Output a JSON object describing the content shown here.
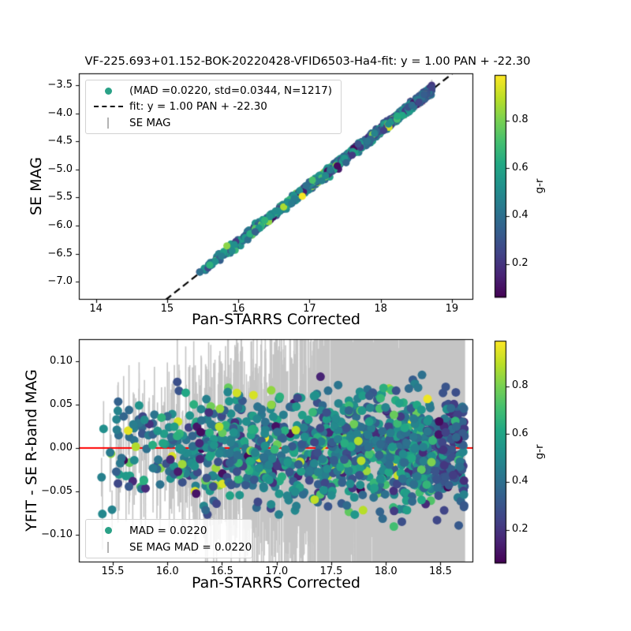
{
  "figure": {
    "title": "VF-225.693+01.152-BOK-20220428-VFID6503-Ha4-fit: y = 1.00 PAN + -22.30"
  },
  "chart_data": [
    {
      "type": "scatter",
      "panel": "top",
      "xlabel": "Pan-STARRS Corrected",
      "ylabel": "SE MAG",
      "xlim": [
        13.76,
        19.3
      ],
      "ylim": [
        -7.32,
        -3.29
      ],
      "xticks": [
        14,
        15,
        16,
        17,
        18,
        19
      ],
      "xtick_labels": [
        "14",
        "15",
        "16",
        "17",
        "18",
        "19"
      ],
      "yticks": [
        -3.5,
        -4.0,
        -4.5,
        -5.0,
        -5.5,
        -6.0,
        -6.5,
        -7.0
      ],
      "ytick_labels": [
        "−3.5",
        "−4.0",
        "−4.5",
        "−5.0",
        "−5.5",
        "−6.0",
        "−6.5",
        "−7.0"
      ],
      "grid": false,
      "legend": {
        "position": "upper left",
        "entries": [
          {
            "marker": "dot",
            "color": "#2aa187",
            "label": "(MAD =0.0220, std=0.0344, N=1217)"
          },
          {
            "marker": "dashed-line",
            "color": "#000000",
            "label": "fit: y = 1.00 PAN + -22.30"
          },
          {
            "marker": "errorbar",
            "color": "#b3b3b3",
            "label": "SE MAG"
          }
        ]
      },
      "fit": {
        "slope": 1.0,
        "intercept": -22.3,
        "color": "#000000",
        "style": "dashed"
      },
      "stats": {
        "MAD": 0.022,
        "std": 0.0344,
        "N": 1217
      },
      "series": {
        "n": 1217,
        "x_min": 15.35,
        "x_max": 18.72,
        "relation": "SE MAG = 1.00 * PAN - 22.30 with scatter std 0.0344",
        "color_by": "g-r"
      },
      "colorbar": {
        "label": "g-r",
        "cmap": "viridis",
        "vmin": 0.06,
        "vmax": 0.99,
        "ticks": [
          0.2,
          0.4,
          0.6,
          0.8
        ],
        "tick_labels": [
          "0.2",
          "0.4",
          "0.6",
          "0.8"
        ]
      }
    },
    {
      "type": "scatter",
      "panel": "bottom",
      "xlabel": "Pan-STARRS Corrected",
      "ylabel": "YFIT - SE R-band MAG",
      "xlim": [
        15.19,
        18.8
      ],
      "ylim": [
        -0.132,
        0.1255
      ],
      "xticks": [
        15.5,
        16.0,
        16.5,
        17.0,
        17.5,
        18.0,
        18.5
      ],
      "xtick_labels": [
        "15.5",
        "16.0",
        "16.5",
        "17.0",
        "17.5",
        "18.0",
        "18.5"
      ],
      "yticks": [
        0.1,
        0.05,
        0.0,
        -0.05,
        -0.1
      ],
      "ytick_labels": [
        "0.10",
        "0.05",
        "0.00",
        "−0.05",
        "−0.10"
      ],
      "grid": false,
      "zero_line": {
        "y": 0.0,
        "color": "#ff0000"
      },
      "legend": {
        "position": "lower left",
        "entries": [
          {
            "marker": "dot",
            "color": "#2aa187",
            "label": "MAD = 0.0220"
          },
          {
            "marker": "errorbar",
            "color": "#b3b3b3",
            "label": "SE MAG MAD = 0.0220"
          }
        ]
      },
      "stats": {
        "MAD": 0.022,
        "N": 1217
      },
      "series": {
        "n": 1217,
        "x_min": 15.35,
        "x_max": 18.72,
        "residual_mean": 0.0,
        "residual_std": 0.033,
        "color_by": "g-r"
      },
      "colorbar": {
        "label": "g-r",
        "cmap": "viridis",
        "vmin": 0.06,
        "vmax": 0.99,
        "ticks": [
          0.2,
          0.4,
          0.6,
          0.8
        ],
        "tick_labels": [
          "0.2",
          "0.4",
          "0.6",
          "0.8"
        ]
      }
    }
  ]
}
